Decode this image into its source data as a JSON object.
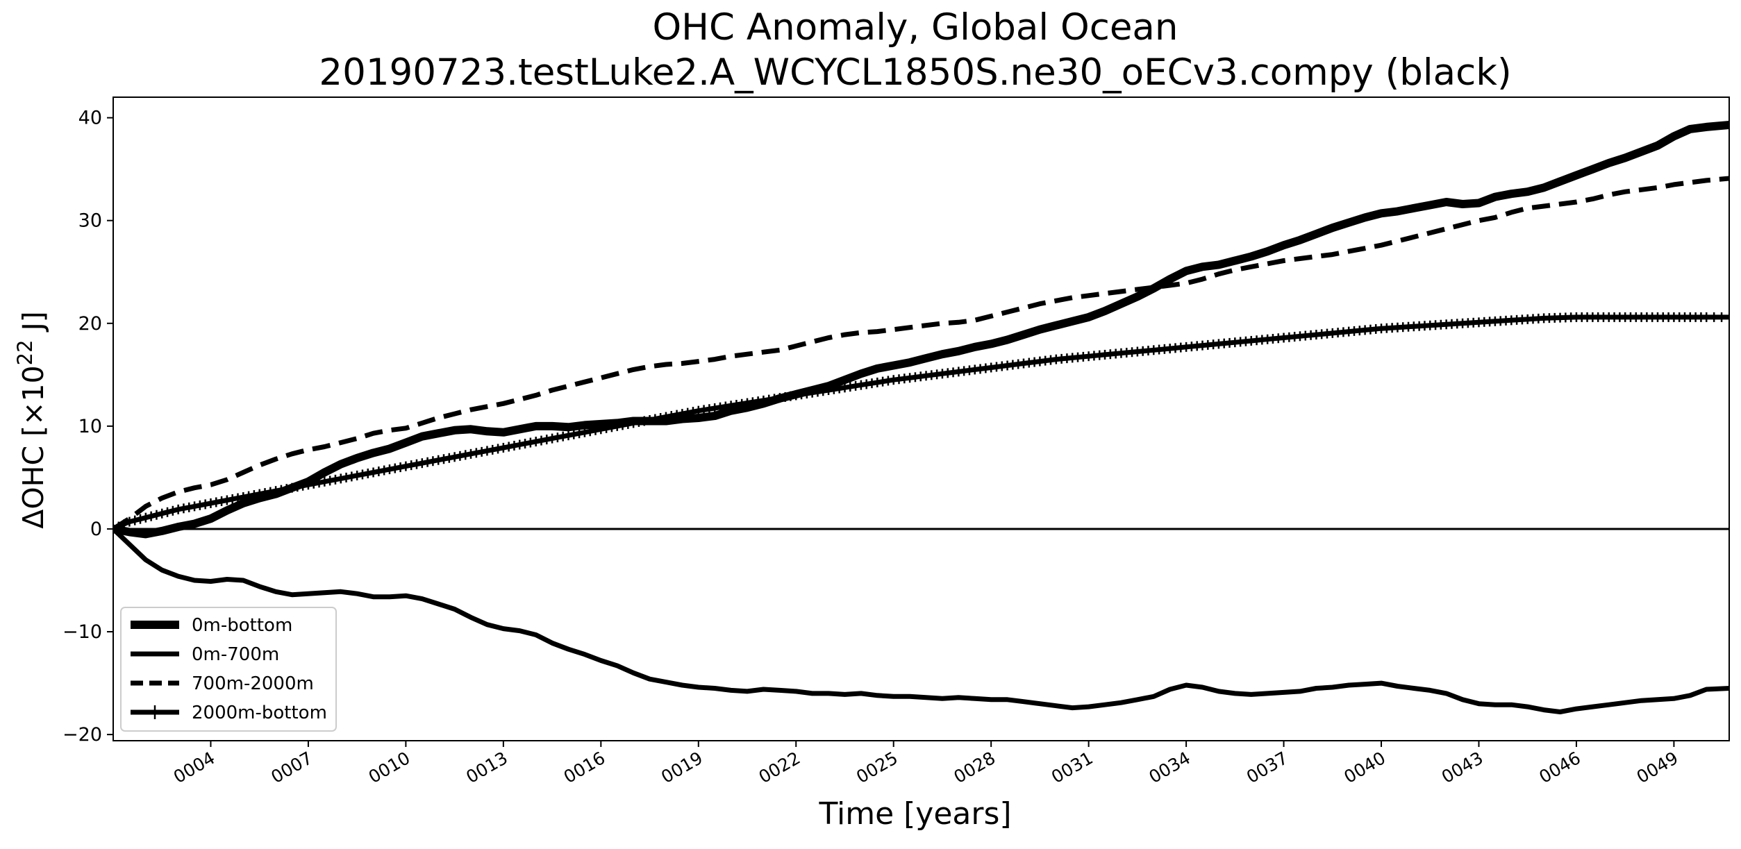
{
  "chart_data": {
    "type": "line",
    "title_line1": "OHC Anomaly, Global Ocean",
    "title_line2": "20190723.testLuke2.A_WCYCL1850S.ne30_oECv3.compy (black)",
    "xlabel": "Time [years]",
    "ylabel_prefix": "ΔOHC [×10",
    "ylabel_exponent": "22",
    "ylabel_suffix": " J]",
    "xlim": [
      1,
      50.7
    ],
    "ylim": [
      -20.6,
      42
    ],
    "x_ticks": [
      4,
      7,
      10,
      13,
      16,
      19,
      22,
      25,
      28,
      31,
      34,
      37,
      40,
      43,
      46,
      49
    ],
    "x_tick_labels": [
      "0004",
      "0007",
      "0010",
      "0013",
      "0016",
      "0019",
      "0022",
      "0025",
      "0028",
      "0031",
      "0034",
      "0037",
      "0040",
      "0043",
      "0046",
      "0049"
    ],
    "y_ticks": [
      -20,
      -10,
      0,
      10,
      20,
      30,
      40
    ],
    "y_tick_labels": [
      "−20",
      "−10",
      "0",
      "10",
      "20",
      "30",
      "40"
    ],
    "zero_line": true,
    "legend_position": "lower-left",
    "color": "#000000",
    "series": [
      {
        "name": "0m-bottom",
        "style": "thick-solid",
        "x": [
          1,
          1.5,
          2,
          2.5,
          3,
          3.5,
          4,
          4.5,
          5,
          5.5,
          6,
          6.5,
          7,
          7.5,
          8,
          8.5,
          9,
          9.5,
          10,
          10.5,
          11,
          11.5,
          12,
          12.5,
          13,
          13.5,
          14,
          14.5,
          15,
          15.5,
          16,
          16.5,
          17,
          17.5,
          18,
          18.5,
          19,
          19.5,
          20,
          20.5,
          21,
          21.5,
          22,
          22.5,
          23,
          23.5,
          24,
          24.5,
          25,
          25.5,
          26,
          26.5,
          27,
          27.5,
          28,
          28.5,
          29,
          29.5,
          30,
          30.5,
          31,
          31.5,
          32,
          32.5,
          33,
          33.5,
          34,
          34.5,
          35,
          35.5,
          36,
          36.5,
          37,
          37.5,
          38,
          38.5,
          39,
          39.5,
          40,
          40.5,
          41,
          41.5,
          42,
          42.5,
          43,
          43.5,
          44,
          44.5,
          45,
          45.5,
          46,
          46.5,
          47,
          47.5,
          48,
          48.5,
          49,
          49.5,
          50,
          50.7
        ],
        "y": [
          0,
          -0.3,
          -0.5,
          -0.2,
          0.2,
          0.5,
          1,
          1.8,
          2.5,
          3,
          3.4,
          4,
          4.6,
          5.5,
          6.3,
          6.9,
          7.4,
          7.8,
          8.4,
          9,
          9.3,
          9.6,
          9.7,
          9.5,
          9.4,
          9.7,
          10,
          10,
          9.9,
          10.1,
          10.2,
          10.3,
          10.5,
          10.5,
          10.5,
          10.7,
          10.8,
          11,
          11.5,
          11.8,
          12.2,
          12.7,
          13.1,
          13.5,
          13.9,
          14.5,
          15.1,
          15.6,
          15.9,
          16.2,
          16.6,
          17,
          17.3,
          17.7,
          18,
          18.4,
          18.9,
          19.4,
          19.8,
          20.2,
          20.6,
          21.2,
          21.9,
          22.6,
          23.4,
          24.3,
          25.1,
          25.5,
          25.7,
          26.1,
          26.5,
          27,
          27.6,
          28.1,
          28.7,
          29.3,
          29.8,
          30.3,
          30.7,
          30.9,
          31.2,
          31.5,
          31.8,
          31.6,
          31.7,
          32.3,
          32.6,
          32.8,
          33.2,
          33.8,
          34.4,
          35,
          35.6,
          36.1,
          36.7,
          37.3,
          38.2,
          38.9,
          39.1,
          39.3
        ]
      },
      {
        "name": "0m-700m",
        "style": "solid",
        "x": [
          1,
          1.5,
          2,
          2.5,
          3,
          3.5,
          4,
          4.5,
          5,
          5.5,
          6,
          6.5,
          7,
          7.5,
          8,
          8.5,
          9,
          9.5,
          10,
          10.5,
          11,
          11.5,
          12,
          12.5,
          13,
          13.5,
          14,
          14.5,
          15,
          15.5,
          16,
          16.5,
          17,
          17.5,
          18,
          18.5,
          19,
          19.5,
          20,
          20.5,
          21,
          21.5,
          22,
          22.5,
          23,
          23.5,
          24,
          24.5,
          25,
          25.5,
          26,
          26.5,
          27,
          27.5,
          28,
          28.5,
          29,
          29.5,
          30,
          30.5,
          31,
          31.5,
          32,
          32.5,
          33,
          33.5,
          34,
          34.5,
          35,
          35.5,
          36,
          36.5,
          37,
          37.5,
          38,
          38.5,
          39,
          39.5,
          40,
          40.5,
          41,
          41.5,
          42,
          42.5,
          43,
          43.5,
          44,
          44.5,
          45,
          45.5,
          46,
          46.5,
          47,
          47.5,
          48,
          48.5,
          49,
          49.5,
          50,
          50.7
        ],
        "y": [
          0,
          -1.5,
          -3,
          -4,
          -4.6,
          -5,
          -5.1,
          -4.9,
          -5,
          -5.6,
          -6.1,
          -6.4,
          -6.3,
          -6.2,
          -6.1,
          -6.3,
          -6.6,
          -6.6,
          -6.5,
          -6.8,
          -7.3,
          -7.8,
          -8.6,
          -9.3,
          -9.7,
          -9.9,
          -10.3,
          -11.1,
          -11.7,
          -12.2,
          -12.8,
          -13.3,
          -14,
          -14.6,
          -14.9,
          -15.2,
          -15.4,
          -15.5,
          -15.7,
          -15.8,
          -15.6,
          -15.7,
          -15.8,
          -16,
          -16,
          -16.1,
          -16,
          -16.2,
          -16.3,
          -16.3,
          -16.4,
          -16.5,
          -16.4,
          -16.5,
          -16.6,
          -16.6,
          -16.8,
          -17,
          -17.2,
          -17.4,
          -17.3,
          -17.1,
          -16.9,
          -16.6,
          -16.3,
          -15.6,
          -15.2,
          -15.4,
          -15.8,
          -16,
          -16.1,
          -16,
          -15.9,
          -15.8,
          -15.5,
          -15.4,
          -15.2,
          -15.1,
          -15,
          -15.3,
          -15.5,
          -15.7,
          -16,
          -16.6,
          -17,
          -17.1,
          -17.1,
          -17.3,
          -17.6,
          -17.8,
          -17.5,
          -17.3,
          -17.1,
          -16.9,
          -16.7,
          -16.6,
          -16.5,
          -16.2,
          -15.6,
          -15.5
        ]
      },
      {
        "name": "700m-2000m",
        "style": "dashed",
        "x": [
          1,
          1.5,
          2,
          2.5,
          3,
          3.5,
          4,
          4.5,
          5,
          5.5,
          6,
          6.5,
          7,
          7.5,
          8,
          8.5,
          9,
          9.5,
          10,
          10.5,
          11,
          11.5,
          12,
          12.5,
          13,
          13.5,
          14,
          14.5,
          15,
          15.5,
          16,
          16.5,
          17,
          17.5,
          18,
          18.5,
          19,
          19.5,
          20,
          20.5,
          21,
          21.5,
          22,
          22.5,
          23,
          23.5,
          24,
          24.5,
          25,
          25.5,
          26,
          26.5,
          27,
          27.5,
          28,
          28.5,
          29,
          29.5,
          30,
          30.5,
          31,
          31.5,
          32,
          32.5,
          33,
          33.5,
          34,
          34.5,
          35,
          35.5,
          36,
          36.5,
          37,
          37.5,
          38,
          38.5,
          39,
          39.5,
          40,
          40.5,
          41,
          41.5,
          42,
          42.5,
          43,
          43.5,
          44,
          44.5,
          45,
          45.5,
          46,
          46.5,
          47,
          47.5,
          48,
          48.5,
          49,
          49.5,
          50,
          50.7
        ],
        "y": [
          0,
          1,
          2.2,
          3,
          3.6,
          4,
          4.3,
          4.8,
          5.5,
          6.2,
          6.8,
          7.3,
          7.7,
          8,
          8.4,
          8.8,
          9.3,
          9.6,
          9.8,
          10.3,
          10.8,
          11.2,
          11.6,
          11.9,
          12.2,
          12.6,
          13,
          13.5,
          13.9,
          14.3,
          14.7,
          15.1,
          15.5,
          15.8,
          16,
          16.1,
          16.3,
          16.5,
          16.8,
          17,
          17.2,
          17.4,
          17.8,
          18.2,
          18.6,
          18.9,
          19.1,
          19.2,
          19.4,
          19.6,
          19.8,
          20,
          20.1,
          20.3,
          20.7,
          21.1,
          21.5,
          21.9,
          22.2,
          22.5,
          22.7,
          22.9,
          23.1,
          23.3,
          23.5,
          23.7,
          23.9,
          24.3,
          24.8,
          25.2,
          25.5,
          25.8,
          26.1,
          26.3,
          26.5,
          26.7,
          27,
          27.3,
          27.6,
          28,
          28.4,
          28.8,
          29.2,
          29.6,
          30,
          30.3,
          30.8,
          31.2,
          31.4,
          31.6,
          31.8,
          32.1,
          32.5,
          32.8,
          33,
          33.2,
          33.5,
          33.7,
          33.9,
          34.1
        ]
      },
      {
        "name": "2000m-bottom",
        "style": "solid-plus",
        "x": [
          1,
          1.5,
          2,
          2.5,
          3,
          3.5,
          4,
          4.5,
          5,
          5.5,
          6,
          6.5,
          7,
          7.5,
          8,
          8.5,
          9,
          9.5,
          10,
          10.5,
          11,
          11.5,
          12,
          12.5,
          13,
          13.5,
          14,
          14.5,
          15,
          15.5,
          16,
          16.5,
          17,
          17.5,
          18,
          18.5,
          19,
          19.5,
          20,
          20.5,
          21,
          21.5,
          22,
          22.5,
          23,
          23.5,
          24,
          24.5,
          25,
          25.5,
          26,
          26.5,
          27,
          27.5,
          28,
          28.5,
          29,
          29.5,
          30,
          30.5,
          31,
          31.5,
          32,
          32.5,
          33,
          33.5,
          34,
          34.5,
          35,
          35.5,
          36,
          36.5,
          37,
          37.5,
          38,
          38.5,
          39,
          39.5,
          40,
          40.5,
          41,
          41.5,
          42,
          42.5,
          43,
          43.5,
          44,
          44.5,
          45,
          45.5,
          46,
          46.5,
          47,
          47.5,
          48,
          48.5,
          49,
          49.5,
          50,
          50.7
        ],
        "y": [
          0,
          0.7,
          1.1,
          1.5,
          1.9,
          2.2,
          2.5,
          2.8,
          3.1,
          3.4,
          3.7,
          4,
          4.3,
          4.6,
          4.9,
          5.2,
          5.5,
          5.8,
          6.1,
          6.4,
          6.7,
          7,
          7.3,
          7.6,
          7.9,
          8.2,
          8.5,
          8.8,
          9.1,
          9.4,
          9.7,
          10,
          10.3,
          10.6,
          10.9,
          11.2,
          11.5,
          11.75,
          12,
          12.25,
          12.5,
          12.75,
          13,
          13.25,
          13.5,
          13.75,
          14,
          14.25,
          14.5,
          14.7,
          14.9,
          15.1,
          15.3,
          15.5,
          15.7,
          15.9,
          16.1,
          16.3,
          16.5,
          16.65,
          16.8,
          16.95,
          17.1,
          17.25,
          17.4,
          17.55,
          17.7,
          17.85,
          18,
          18.15,
          18.3,
          18.45,
          18.6,
          18.75,
          18.9,
          19.05,
          19.2,
          19.35,
          19.5,
          19.6,
          19.7,
          19.8,
          19.9,
          20,
          20.1,
          20.2,
          20.3,
          20.4,
          20.5,
          20.55,
          20.6,
          20.6,
          20.6,
          20.6,
          20.6,
          20.6,
          20.6,
          20.6,
          20.6,
          20.6
        ]
      }
    ]
  }
}
